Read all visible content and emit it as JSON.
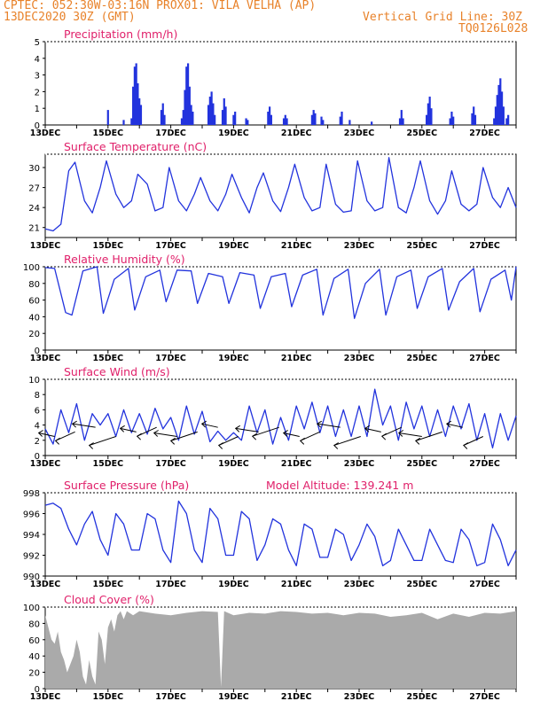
{
  "header": {
    "line1": "CPTEC:  052:30W-03:16N  PROX01: VILA VELHA (AP)",
    "line2": "13DEC2020 30Z (GMT)",
    "vgrid": "Vertical Grid Line: 30Z",
    "code": "TQ0126L028"
  },
  "colors": {
    "header": "#e8822a",
    "title": "#e0206a",
    "series": "#2233dd",
    "precip_bars": "#2233dd",
    "cloud_fill": "#aaaaaa"
  },
  "x_tick_labels": [
    "13DEC",
    "15DEC",
    "17DEC",
    "19DEC",
    "21DEC",
    "23DEC",
    "25DEC",
    "27DEC"
  ],
  "chart_data": [
    {
      "type": "bar",
      "title": "Precipitation (mm/h)",
      "ylim": [
        0,
        5
      ],
      "yticks": [
        0,
        1,
        2,
        3,
        4,
        5
      ],
      "x_range_days": [
        0,
        15
      ],
      "bars": [
        {
          "x": 2.0,
          "y": 0.9
        },
        {
          "x": 2.5,
          "y": 0.3
        },
        {
          "x": 2.75,
          "y": 0.4
        },
        {
          "x": 2.8,
          "y": 2.3
        },
        {
          "x": 2.85,
          "y": 3.5
        },
        {
          "x": 2.9,
          "y": 3.7
        },
        {
          "x": 2.95,
          "y": 2.5
        },
        {
          "x": 3.0,
          "y": 1.6
        },
        {
          "x": 3.05,
          "y": 1.2
        },
        {
          "x": 3.7,
          "y": 0.9
        },
        {
          "x": 3.75,
          "y": 1.3
        },
        {
          "x": 3.8,
          "y": 0.6
        },
        {
          "x": 4.35,
          "y": 0.4
        },
        {
          "x": 4.4,
          "y": 0.9
        },
        {
          "x": 4.45,
          "y": 2.1
        },
        {
          "x": 4.5,
          "y": 3.5
        },
        {
          "x": 4.55,
          "y": 3.7
        },
        {
          "x": 4.6,
          "y": 2.3
        },
        {
          "x": 4.65,
          "y": 1.2
        },
        {
          "x": 4.7,
          "y": 0.8
        },
        {
          "x": 5.2,
          "y": 1.2
        },
        {
          "x": 5.25,
          "y": 1.7
        },
        {
          "x": 5.3,
          "y": 2.0
        },
        {
          "x": 5.35,
          "y": 1.3
        },
        {
          "x": 5.4,
          "y": 0.6
        },
        {
          "x": 5.65,
          "y": 0.9
        },
        {
          "x": 5.7,
          "y": 1.6
        },
        {
          "x": 5.75,
          "y": 1.1
        },
        {
          "x": 6.0,
          "y": 0.6
        },
        {
          "x": 6.05,
          "y": 0.8
        },
        {
          "x": 6.4,
          "y": 0.4
        },
        {
          "x": 6.45,
          "y": 0.3
        },
        {
          "x": 7.1,
          "y": 0.8
        },
        {
          "x": 7.15,
          "y": 1.1
        },
        {
          "x": 7.2,
          "y": 0.6
        },
        {
          "x": 7.6,
          "y": 0.4
        },
        {
          "x": 7.65,
          "y": 0.6
        },
        {
          "x": 7.7,
          "y": 0.4
        },
        {
          "x": 8.5,
          "y": 0.6
        },
        {
          "x": 8.55,
          "y": 0.9
        },
        {
          "x": 8.6,
          "y": 0.7
        },
        {
          "x": 8.8,
          "y": 0.5
        },
        {
          "x": 8.85,
          "y": 0.3
        },
        {
          "x": 9.4,
          "y": 0.5
        },
        {
          "x": 9.45,
          "y": 0.8
        },
        {
          "x": 9.7,
          "y": 0.3
        },
        {
          "x": 10.4,
          "y": 0.2
        },
        {
          "x": 11.3,
          "y": 0.4
        },
        {
          "x": 11.35,
          "y": 0.9
        },
        {
          "x": 11.4,
          "y": 0.4
        },
        {
          "x": 12.15,
          "y": 0.6
        },
        {
          "x": 12.2,
          "y": 1.3
        },
        {
          "x": 12.25,
          "y": 1.7
        },
        {
          "x": 12.3,
          "y": 1.0
        },
        {
          "x": 12.9,
          "y": 0.4
        },
        {
          "x": 12.95,
          "y": 0.8
        },
        {
          "x": 13.0,
          "y": 0.5
        },
        {
          "x": 13.6,
          "y": 0.7
        },
        {
          "x": 13.65,
          "y": 1.1
        },
        {
          "x": 13.7,
          "y": 0.6
        },
        {
          "x": 14.3,
          "y": 0.4
        },
        {
          "x": 14.35,
          "y": 1.1
        },
        {
          "x": 14.4,
          "y": 1.8
        },
        {
          "x": 14.45,
          "y": 2.4
        },
        {
          "x": 14.5,
          "y": 2.8
        },
        {
          "x": 14.55,
          "y": 2.0
        },
        {
          "x": 14.6,
          "y": 1.1
        },
        {
          "x": 14.7,
          "y": 0.4
        },
        {
          "x": 14.75,
          "y": 0.6
        }
      ]
    },
    {
      "type": "line",
      "title": "Surface Temperature (nC)",
      "ylim": [
        19.5,
        32
      ],
      "yticks": [
        21,
        24,
        27,
        30
      ],
      "x": [
        0,
        0.25,
        0.5,
        0.75,
        0.95,
        1.25,
        1.5,
        1.75,
        1.95,
        2.25,
        2.5,
        2.75,
        2.95,
        3.25,
        3.5,
        3.75,
        3.95,
        4.25,
        4.5,
        4.75,
        4.95,
        5.25,
        5.5,
        5.75,
        5.95,
        6.25,
        6.5,
        6.75,
        6.95,
        7.25,
        7.5,
        7.75,
        7.95,
        8.25,
        8.5,
        8.75,
        8.95,
        9.25,
        9.5,
        9.75,
        9.95,
        10.25,
        10.5,
        10.75,
        10.95,
        11.25,
        11.5,
        11.75,
        11.95,
        12.25,
        12.5,
        12.75,
        12.95,
        13.25,
        13.5,
        13.75,
        13.95,
        14.25,
        14.5,
        14.75,
        15
      ],
      "y": [
        20.8,
        20.5,
        21.5,
        29.5,
        30.8,
        25,
        23.2,
        27,
        31,
        26,
        24,
        25,
        29,
        27.5,
        23.5,
        24,
        30,
        25,
        23.5,
        26,
        28.5,
        25,
        23.5,
        26,
        29,
        25.5,
        23.2,
        27,
        29.2,
        25,
        23.4,
        27,
        30.5,
        25.5,
        23.5,
        24,
        30.5,
        24.5,
        23.3,
        23.5,
        31,
        25,
        23.5,
        24,
        31.5,
        24,
        23.2,
        27,
        31,
        25,
        23,
        25,
        29.5,
        24.5,
        23.5,
        24.5,
        30,
        25.5,
        24,
        27,
        24
      ]
    },
    {
      "type": "line",
      "title": "Relative Humidity (%)",
      "ylim": [
        0,
        100
      ],
      "yticks": [
        0,
        20,
        40,
        60,
        80,
        100
      ],
      "x": [
        0,
        0.3,
        0.65,
        0.85,
        1.2,
        1.65,
        1.85,
        2.2,
        2.65,
        2.85,
        3.2,
        3.65,
        3.85,
        4.2,
        4.65,
        4.85,
        5.2,
        5.65,
        5.85,
        6.2,
        6.65,
        6.85,
        7.2,
        7.65,
        7.85,
        8.2,
        8.65,
        8.85,
        9.2,
        9.65,
        9.85,
        10.2,
        10.65,
        10.85,
        11.2,
        11.65,
        11.85,
        12.2,
        12.65,
        12.85,
        13.2,
        13.65,
        13.85,
        14.2,
        14.65,
        14.85,
        15
      ],
      "y": [
        99,
        98,
        45,
        42,
        95,
        100,
        44,
        85,
        98,
        48,
        88,
        96,
        58,
        96,
        95,
        56,
        92,
        88,
        56,
        93,
        90,
        50,
        88,
        92,
        52,
        90,
        97,
        42,
        86,
        97,
        38,
        80,
        97,
        42,
        88,
        96,
        50,
        88,
        98,
        48,
        82,
        98,
        46,
        85,
        96,
        60,
        100
      ]
    },
    {
      "type": "line",
      "title": "Surface Wind (m/s)",
      "ylim": [
        0,
        10
      ],
      "yticks": [
        0,
        2,
        4,
        6,
        8,
        10
      ],
      "x": [
        0,
        0.25,
        0.5,
        0.75,
        1.0,
        1.25,
        1.5,
        1.75,
        2.0,
        2.25,
        2.5,
        2.75,
        3.0,
        3.25,
        3.5,
        3.75,
        4.0,
        4.25,
        4.5,
        4.75,
        5.0,
        5.25,
        5.5,
        5.75,
        6.0,
        6.25,
        6.5,
        6.75,
        7.0,
        7.25,
        7.5,
        7.75,
        8.0,
        8.25,
        8.5,
        8.75,
        9.0,
        9.25,
        9.5,
        9.75,
        10.0,
        10.25,
        10.5,
        10.75,
        11.0,
        11.25,
        11.5,
        11.75,
        12.0,
        12.25,
        12.5,
        12.75,
        13.0,
        13.25,
        13.5,
        13.75,
        14.0,
        14.25,
        14.5,
        14.75,
        15
      ],
      "y": [
        3.5,
        1.5,
        6,
        3,
        6.8,
        2,
        5.5,
        4,
        5.5,
        2.5,
        6,
        3,
        5.5,
        2.8,
        6.2,
        3.5,
        5,
        2,
        6.5,
        2.8,
        5.8,
        1.8,
        3.2,
        2,
        3,
        2,
        6.5,
        3,
        6,
        1.5,
        5,
        2,
        6.5,
        3.5,
        7,
        3,
        6.5,
        2.5,
        6,
        2.5,
        6.5,
        2.5,
        8.7,
        4,
        6.5,
        2,
        7,
        3.5,
        6.5,
        2.5,
        6,
        2.5,
        6.5,
        3.5,
        6.8,
        2,
        5.5,
        1,
        5.5,
        2,
        5.2
      ]
    },
    {
      "type": "line",
      "title": "Surface Pressure (hPa)",
      "annotation": "Model Altitude: 139.241  m",
      "ylim": [
        990,
        998
      ],
      "yticks": [
        990,
        992,
        994,
        996,
        998
      ],
      "x": [
        0,
        0.25,
        0.5,
        0.75,
        1.0,
        1.25,
        1.5,
        1.75,
        2.0,
        2.25,
        2.5,
        2.75,
        3.0,
        3.25,
        3.5,
        3.75,
        4.0,
        4.25,
        4.5,
        4.75,
        5.0,
        5.25,
        5.5,
        5.75,
        6.0,
        6.25,
        6.5,
        6.75,
        7.0,
        7.25,
        7.5,
        7.75,
        8.0,
        8.25,
        8.5,
        8.75,
        9.0,
        9.25,
        9.5,
        9.75,
        10.0,
        10.25,
        10.5,
        10.75,
        11.0,
        11.25,
        11.5,
        11.75,
        12.0,
        12.25,
        12.5,
        12.75,
        13.0,
        13.25,
        13.5,
        13.75,
        14.0,
        14.25,
        14.5,
        14.75,
        15
      ],
      "y": [
        996.8,
        997.0,
        996.5,
        994.5,
        993.0,
        995.0,
        996.2,
        993.5,
        992.0,
        996.0,
        995.0,
        992.5,
        992.5,
        996.0,
        995.5,
        992.5,
        991.3,
        997.2,
        996.0,
        992.5,
        991.3,
        996.5,
        995.5,
        992.0,
        992.0,
        996.2,
        995.5,
        991.5,
        993.0,
        995.5,
        995.0,
        992.5,
        991.0,
        995.0,
        994.5,
        991.8,
        991.8,
        994.5,
        994.0,
        991.5,
        993.0,
        995.0,
        993.8,
        991.0,
        991.5,
        994.5,
        993.0,
        991.5,
        991.5,
        994.5,
        993.0,
        991.5,
        991.3,
        994.5,
        993.5,
        991.0,
        991.3,
        995.0,
        993.5,
        991.0,
        992.5
      ]
    },
    {
      "type": "area",
      "title": "Cloud Cover (%)",
      "ylim": [
        0,
        100
      ],
      "yticks": [
        0,
        20,
        40,
        60,
        80,
        100
      ],
      "x": [
        0,
        0.1,
        0.2,
        0.3,
        0.4,
        0.5,
        0.6,
        0.7,
        0.8,
        0.9,
        1.0,
        1.1,
        1.2,
        1.3,
        1.4,
        1.5,
        1.6,
        1.7,
        1.8,
        1.9,
        2.0,
        2.1,
        2.2,
        2.3,
        2.4,
        2.5,
        2.6,
        2.8,
        3.0,
        3.5,
        4.0,
        4.5,
        5.0,
        5.5,
        5.6,
        5.7,
        6.0,
        6.5,
        7.0,
        7.5,
        8.0,
        8.5,
        9.0,
        9.5,
        10.0,
        10.5,
        11.0,
        11.5,
        12.0,
        12.5,
        13.0,
        13.5,
        14.0,
        14.5,
        15
      ],
      "y": [
        90,
        75,
        60,
        55,
        70,
        45,
        35,
        20,
        30,
        40,
        60,
        45,
        15,
        5,
        35,
        15,
        5,
        70,
        60,
        30,
        75,
        85,
        70,
        90,
        95,
        85,
        95,
        90,
        95,
        92,
        90,
        93,
        95,
        94,
        2,
        95,
        90,
        93,
        92,
        95,
        94,
        92,
        93,
        90,
        93,
        92,
        88,
        90,
        93,
        85,
        92,
        88,
        93,
        92,
        95
      ]
    }
  ]
}
